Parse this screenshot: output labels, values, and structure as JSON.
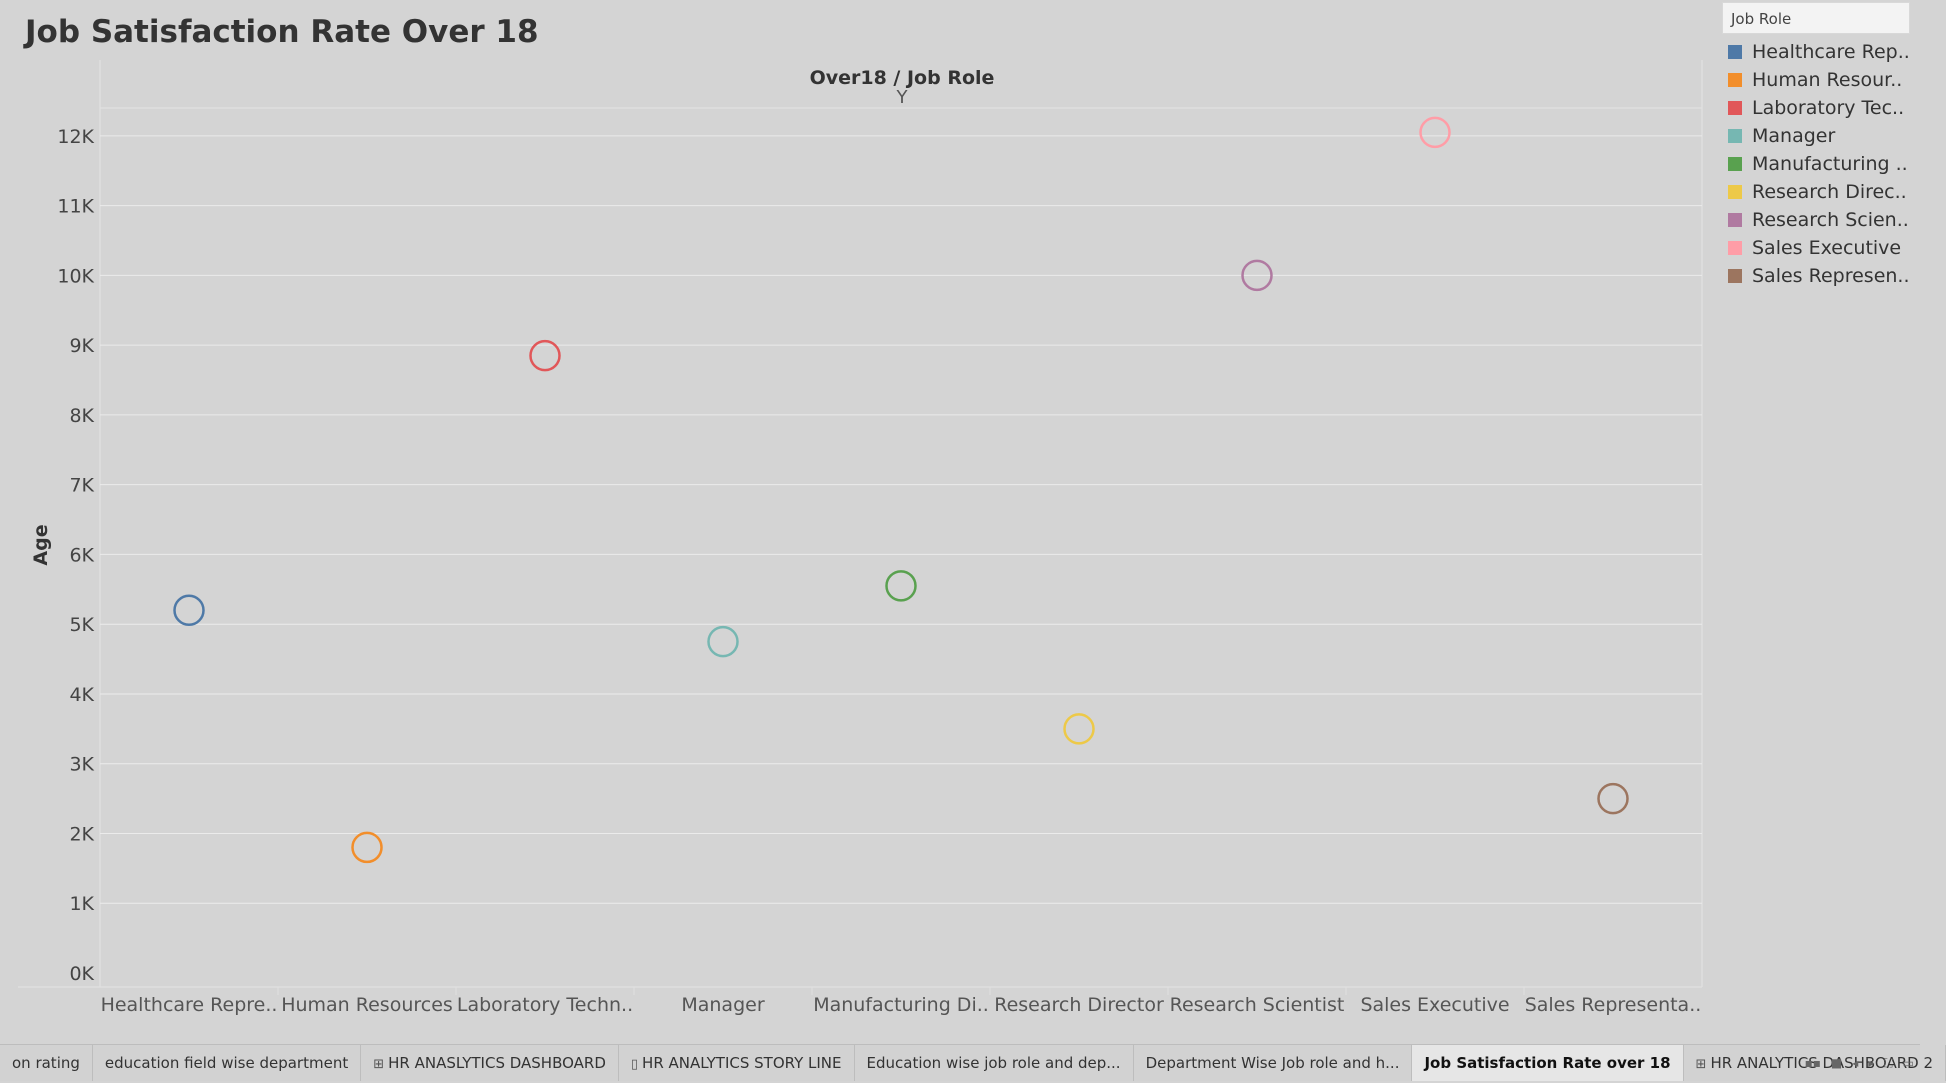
{
  "title": "Job Satisfaction Rate Over 18",
  "chart_data": {
    "type": "scatter",
    "header": "Over18  /  Job Role",
    "sub_header": "Y",
    "ylabel": "Age",
    "ylim": [
      0,
      12600
    ],
    "yticks": [
      0,
      1000,
      2000,
      3000,
      4000,
      5000,
      6000,
      7000,
      8000,
      9000,
      10000,
      11000,
      12000
    ],
    "ytick_labels": [
      "0K",
      "1K",
      "2K",
      "3K",
      "4K",
      "5K",
      "6K",
      "7K",
      "8K",
      "9K",
      "10K",
      "11K",
      "12K"
    ],
    "categories": [
      "Healthcare Repre..",
      "Human Resources",
      "Laboratory Techn..",
      "Manager",
      "Manufacturing Di..",
      "Research Director",
      "Research Scientist",
      "Sales Executive",
      "Sales Representa.."
    ],
    "values": [
      5200,
      1800,
      8850,
      4750,
      5550,
      3500,
      10000,
      12050,
      2500
    ],
    "colors": [
      "#4e79a7",
      "#f28e2b",
      "#e15759",
      "#76b7b2",
      "#59a14f",
      "#edc948",
      "#b07aa1",
      "#ff9da7",
      "#9c755f"
    ],
    "grid": true,
    "legend_position": "top-right"
  },
  "legend": {
    "title": "Job Role",
    "items": [
      "Healthcare Rep..",
      "Human Resour..",
      "Laboratory Tec..",
      "Manager",
      "Manufacturing ..",
      "Research Direc..",
      "Research Scien..",
      "Sales Executive",
      "Sales Represen.."
    ]
  },
  "tabs": [
    {
      "label": "on rating",
      "icon": ""
    },
    {
      "label": "education field wise department",
      "icon": ""
    },
    {
      "label": "HR ANASLYTICS DASHBOARD",
      "icon": "⊞"
    },
    {
      "label": "HR ANALYTICS STORY LINE",
      "icon": "▯"
    },
    {
      "label": "Education wise job role and dep...",
      "icon": ""
    },
    {
      "label": "Department Wise Job role and h...",
      "icon": ""
    },
    {
      "label": "Job Satisfaction Rate over 18",
      "icon": "",
      "active": true
    },
    {
      "label": "HR ANALYTICS DASHBOARD 2",
      "icon": "⊞"
    }
  ],
  "tab_controls": [
    "▪▪",
    "■",
    "◂",
    "▸",
    "⛶",
    "▭"
  ]
}
